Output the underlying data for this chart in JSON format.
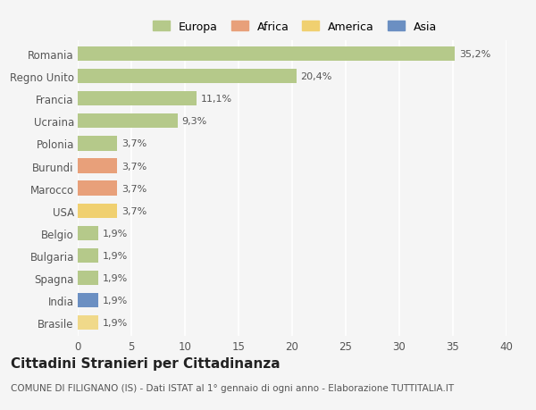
{
  "categories": [
    "Brasile",
    "India",
    "Spagna",
    "Bulgaria",
    "Belgio",
    "USA",
    "Marocco",
    "Burundi",
    "Polonia",
    "Ucraina",
    "Francia",
    "Regno Unito",
    "Romania"
  ],
  "values": [
    1.9,
    1.9,
    1.9,
    1.9,
    1.9,
    3.7,
    3.7,
    3.7,
    3.7,
    9.3,
    11.1,
    20.4,
    35.2
  ],
  "labels": [
    "1,9%",
    "1,9%",
    "1,9%",
    "1,9%",
    "1,9%",
    "3,7%",
    "3,7%",
    "3,7%",
    "3,7%",
    "9,3%",
    "11,1%",
    "20,4%",
    "35,2%"
  ],
  "colors": [
    "#f0d98a",
    "#6b8fc2",
    "#b5c98a",
    "#b5c98a",
    "#b5c98a",
    "#f0d070",
    "#e8a07a",
    "#e8a07a",
    "#b5c98a",
    "#b5c98a",
    "#b5c98a",
    "#b5c98a",
    "#b5c98a"
  ],
  "legend_labels": [
    "Europa",
    "Africa",
    "America",
    "Asia"
  ],
  "legend_colors": [
    "#b5c98a",
    "#e8a07a",
    "#f0d070",
    "#6b8fc2"
  ],
  "title": "Cittadini Stranieri per Cittadinanza",
  "subtitle": "COMUNE DI FILIGNANO (IS) - Dati ISTAT al 1° gennaio di ogni anno - Elaborazione TUTTITALIA.IT",
  "xlim": [
    0,
    40
  ],
  "xticks": [
    0,
    5,
    10,
    15,
    20,
    25,
    30,
    35,
    40
  ],
  "background_color": "#f5f5f5",
  "bar_height": 0.65,
  "grid_color": "#ffffff",
  "title_fontsize": 11,
  "subtitle_fontsize": 7.5,
  "label_fontsize": 8,
  "tick_fontsize": 8.5
}
